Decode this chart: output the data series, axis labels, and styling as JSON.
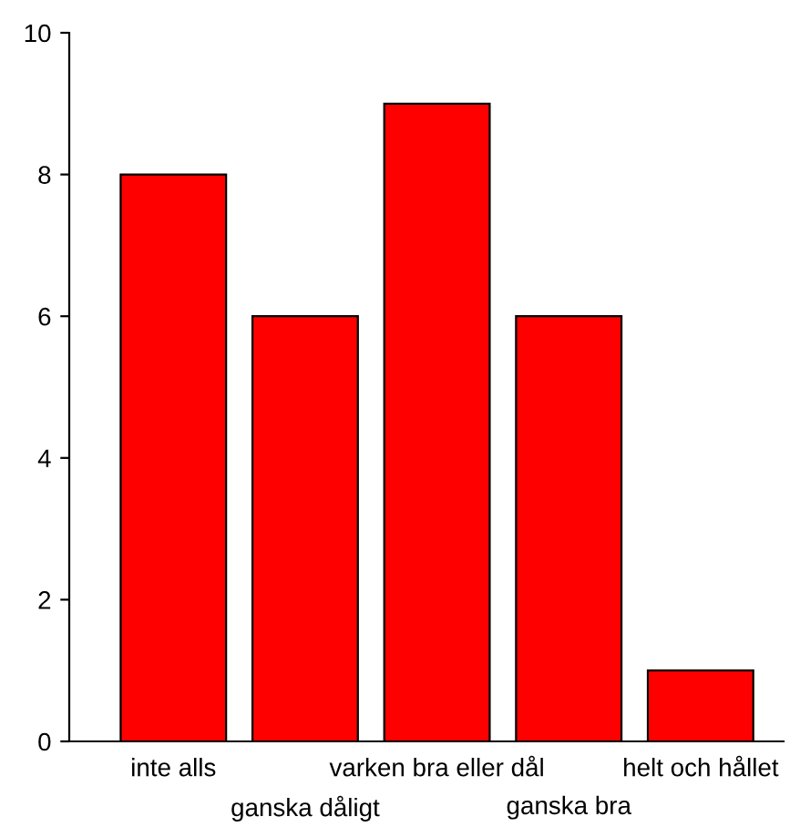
{
  "chart_data": {
    "type": "bar",
    "categories": [
      "inte alls",
      "ganska dåligt",
      "varken bra eller dål",
      "ganska bra",
      "helt och hållet"
    ],
    "values": [
      8,
      6,
      9,
      6,
      1
    ],
    "color": "#ff0000",
    "ylim": [
      0,
      10
    ],
    "yticks": [
      0,
      2,
      4,
      6,
      8,
      10
    ],
    "grid": false,
    "legend": false
  }
}
